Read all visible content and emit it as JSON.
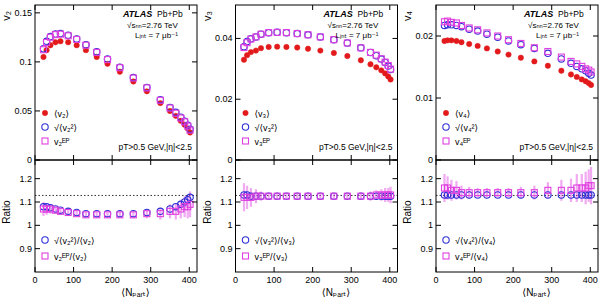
{
  "chart_data": [
    {
      "type": "scatter",
      "y_label": "v₂",
      "tick_labels": "y",
      "x": [
        22,
        30,
        40,
        53,
        66,
        86,
        108,
        132,
        160,
        188,
        220,
        255,
        290,
        325,
        350,
        365,
        378,
        388,
        396,
        402
      ],
      "xlim": [
        0,
        420
      ],
      "xticks": [
        0,
        100,
        200,
        300,
        400
      ],
      "ylim": [
        0,
        0.158
      ],
      "yticks": [
        0,
        0.05,
        0.1,
        0.15
      ],
      "legend": "lower left",
      "annotations": [
        "ATLAS",
        "Pb+Pb",
        "√sₙₙ=2.76 TeV",
        "Lᵢₙₜ = 7 μb⁻¹",
        "pT>0.5 GeV,|η|<2.5"
      ],
      "series": [
        {
          "name": "⟨v₂⟩",
          "color": "#e31a1c",
          "marker": "filled-circle",
          "values": [
            0.105,
            0.112,
            0.117,
            0.12,
            0.121,
            0.12,
            0.117,
            0.112,
            0.105,
            0.098,
            0.09,
            0.08,
            0.07,
            0.058,
            0.05,
            0.045,
            0.04,
            0.036,
            0.032,
            0.028
          ]
        },
        {
          "name": "√⟨v₂²⟩",
          "color": "#2f2fd6",
          "marker": "open-circle",
          "values": [
            0.1134,
            0.121,
            0.1258,
            0.1284,
            0.1289,
            0.1272,
            0.1234,
            0.1176,
            0.1103,
            0.1029,
            0.0945,
            0.084,
            0.0739,
            0.0615,
            0.0535,
            0.0486,
            0.0436,
            0.0396,
            0.0355,
            0.0314
          ]
        },
        {
          "name": "v₂ᴱᴾ",
          "color": "#e040e0",
          "marker": "open-square",
          "values": [
            0.1124,
            0.1198,
            0.1252,
            0.1278,
            0.1283,
            0.1266,
            0.1229,
            0.117,
            0.1097,
            0.1024,
            0.0941,
            0.0836,
            0.0735,
            0.0609,
            0.053,
            0.0477,
            0.0428,
            0.0389,
            0.0346,
            0.0305
          ]
        }
      ]
    },
    {
      "type": "scatter",
      "y_label": "v₃",
      "tick_labels": "y",
      "x": [
        22,
        30,
        40,
        53,
        66,
        86,
        108,
        132,
        160,
        188,
        220,
        255,
        290,
        325,
        350,
        365,
        378,
        388,
        396,
        402
      ],
      "xlim": [
        0,
        420
      ],
      "xticks": [
        0,
        100,
        200,
        300,
        400
      ],
      "ylim": [
        0,
        0.051
      ],
      "yticks": [
        0,
        0.02,
        0.04
      ],
      "legend": "lower left",
      "annotations": [
        "ATLAS",
        "Pb+Pb",
        "√sₙₙ=2.76 TeV",
        "Lᵢₙₜ = 7 μb⁻¹",
        "pT>0.5 GeV,|η|<2.5"
      ],
      "series": [
        {
          "name": "⟨v₃⟩",
          "color": "#e31a1c",
          "marker": "filled-circle",
          "values": [
            0.033,
            0.0345,
            0.0355,
            0.036,
            0.0368,
            0.0372,
            0.0373,
            0.0372,
            0.037,
            0.0366,
            0.036,
            0.0352,
            0.0342,
            0.0328,
            0.0315,
            0.0305,
            0.0295,
            0.0285,
            0.0275,
            0.0265
          ]
        },
        {
          "name": "√⟨v₃²⟩",
          "color": "#2f2fd6",
          "marker": "open-circle",
          "values": [
            0.0373,
            0.039,
            0.0399,
            0.0405,
            0.0414,
            0.0419,
            0.042,
            0.0419,
            0.0416,
            0.0412,
            0.0405,
            0.0396,
            0.0385,
            0.0369,
            0.0354,
            0.0343,
            0.0332,
            0.0321,
            0.0309,
            0.0298
          ]
        },
        {
          "name": "v₃ᴱᴾ",
          "color": "#e040e0",
          "marker": "open-square",
          "values": [
            0.037,
            0.0386,
            0.0398,
            0.0405,
            0.0414,
            0.0419,
            0.042,
            0.0419,
            0.0416,
            0.0412,
            0.0405,
            0.0396,
            0.0385,
            0.0369,
            0.0354,
            0.0345,
            0.0333,
            0.0322,
            0.0311,
            0.0299
          ]
        }
      ]
    },
    {
      "type": "scatter",
      "y_label": "v₄",
      "tick_labels": "y",
      "x": [
        22,
        30,
        40,
        53,
        66,
        86,
        108,
        132,
        160,
        188,
        220,
        255,
        290,
        325,
        350,
        365,
        378,
        388,
        396,
        402
      ],
      "xlim": [
        0,
        420
      ],
      "xticks": [
        0,
        100,
        200,
        300,
        400
      ],
      "ylim": [
        0,
        0.025
      ],
      "yticks": [
        0,
        0.01,
        0.02
      ],
      "legend": "lower left",
      "annotations": [
        "ATLAS",
        "Pb+Pb",
        "√sₙₙ=2.76 TeV",
        "Lᵢₙₜ = 7 μb⁻¹",
        "pT>0.5 GeV,|η|<2.5"
      ],
      "series": [
        {
          "name": "⟨v₄⟩",
          "color": "#e31a1c",
          "marker": "filled-circle",
          "values": [
            0.0192,
            0.0193,
            0.0193,
            0.0192,
            0.019,
            0.0187,
            0.0184,
            0.018,
            0.0175,
            0.017,
            0.0165,
            0.0159,
            0.0152,
            0.0144,
            0.0138,
            0.0134,
            0.013,
            0.0127,
            0.0124,
            0.0121
          ]
        },
        {
          "name": "√⟨v₄²⟩",
          "color": "#2f2fd6",
          "marker": "open-circle",
          "values": [
            0.0217,
            0.0218,
            0.0218,
            0.0217,
            0.0215,
            0.0211,
            0.0208,
            0.0203,
            0.0198,
            0.0192,
            0.0186,
            0.018,
            0.0172,
            0.0163,
            0.0156,
            0.0151,
            0.0147,
            0.0144,
            0.014,
            0.0137
          ]
        },
        {
          "name": "v₄ᴱᴾ",
          "color": "#e040e0",
          "marker": "open-square",
          "values": [
            0.0223,
            0.0224,
            0.0222,
            0.0221,
            0.0217,
            0.0213,
            0.021,
            0.0205,
            0.02,
            0.0194,
            0.0188,
            0.0181,
            0.0175,
            0.0166,
            0.0159,
            0.0155,
            0.0151,
            0.0147,
            0.0145,
            0.0142
          ]
        }
      ]
    },
    {
      "type": "scatter",
      "y_label": "Ratio",
      "x_label": "⟨Nₚₐᵣₜ⟩",
      "x": [
        22,
        30,
        40,
        53,
        66,
        86,
        108,
        132,
        160,
        188,
        220,
        255,
        290,
        325,
        350,
        365,
        378,
        388,
        396,
        402
      ],
      "xlim": [
        0,
        420
      ],
      "xticks": [
        0,
        100,
        200,
        300,
        400
      ],
      "ylim": [
        0.8,
        1.28
      ],
      "yticks": [
        0.9,
        1,
        1.1,
        1.2
      ],
      "reference_line": 1.128,
      "legend": "lower left",
      "series": [
        {
          "name": "√⟨v₂²⟩/⟨v₂⟩",
          "color": "#2f2fd6",
          "marker": "open-circle",
          "values": [
            1.08,
            1.08,
            1.075,
            1.07,
            1.065,
            1.06,
            1.055,
            1.05,
            1.05,
            1.05,
            1.05,
            1.05,
            1.055,
            1.06,
            1.07,
            1.08,
            1.09,
            1.1,
            1.11,
            1.12
          ]
        },
        {
          "name": "v₂ᴱᴾ/⟨v₂⟩",
          "color": "#e040e0",
          "marker": "open-square",
          "values": [
            1.07,
            1.07,
            1.07,
            1.065,
            1.06,
            1.055,
            1.05,
            1.045,
            1.045,
            1.045,
            1.045,
            1.045,
            1.05,
            1.05,
            1.06,
            1.06,
            1.07,
            1.08,
            1.08,
            1.09
          ],
          "errors": [
            0.03,
            0.025,
            0.02,
            0.015,
            0.012,
            0.01,
            0.01,
            0.01,
            0.01,
            0.01,
            0.012,
            0.015,
            0.02,
            0.025,
            0.03,
            0.035,
            0.04,
            0.045,
            0.05,
            0.055
          ]
        }
      ]
    },
    {
      "type": "scatter",
      "y_label": "Ratio",
      "x_label": "⟨Nₚₐᵣₜ⟩",
      "x": [
        22,
        30,
        40,
        53,
        66,
        86,
        108,
        132,
        160,
        188,
        220,
        255,
        290,
        325,
        350,
        365,
        378,
        388,
        396,
        402
      ],
      "xlim": [
        0,
        420
      ],
      "xticks": [
        0,
        100,
        200,
        300,
        400
      ],
      "ylim": [
        0.8,
        1.28
      ],
      "yticks": [
        0.9,
        1,
        1.1,
        1.2
      ],
      "reference_line": 1.128,
      "legend": "lower left",
      "series": [
        {
          "name": "√⟨v₃²⟩/⟨v₃⟩",
          "color": "#2f2fd6",
          "marker": "open-circle",
          "values": [
            1.13,
            1.13,
            1.125,
            1.125,
            1.125,
            1.125,
            1.125,
            1.125,
            1.125,
            1.125,
            1.125,
            1.125,
            1.125,
            1.125,
            1.125,
            1.125,
            1.125,
            1.125,
            1.125,
            1.125
          ]
        },
        {
          "name": "v₃ᴱᴾ/⟨v₃⟩",
          "color": "#e040e0",
          "marker": "open-square",
          "values": [
            1.12,
            1.12,
            1.12,
            1.125,
            1.125,
            1.125,
            1.125,
            1.125,
            1.125,
            1.125,
            1.125,
            1.125,
            1.125,
            1.125,
            1.125,
            1.13,
            1.13,
            1.13,
            1.13,
            1.13
          ],
          "errors": [
            0.06,
            0.05,
            0.04,
            0.03,
            0.02,
            0.015,
            0.012,
            0.01,
            0.01,
            0.01,
            0.01,
            0.01,
            0.012,
            0.015,
            0.02,
            0.02,
            0.025,
            0.03,
            0.03,
            0.035
          ]
        }
      ]
    },
    {
      "type": "scatter",
      "y_label": "Ratio",
      "x_label": "⟨Nₚₐᵣₜ⟩",
      "x": [
        22,
        30,
        40,
        53,
        66,
        86,
        108,
        132,
        160,
        188,
        220,
        255,
        290,
        325,
        350,
        365,
        378,
        388,
        396,
        402
      ],
      "xlim": [
        0,
        420
      ],
      "xticks": [
        0,
        100,
        200,
        300,
        400
      ],
      "ylim": [
        0.8,
        1.28
      ],
      "yticks": [
        0.9,
        1,
        1.1,
        1.2
      ],
      "reference_line": 1.128,
      "legend": "lower left",
      "series": [
        {
          "name": "√⟨v₄²⟩/⟨v₄⟩",
          "color": "#2f2fd6",
          "marker": "open-circle",
          "values": [
            1.13,
            1.13,
            1.13,
            1.13,
            1.13,
            1.13,
            1.13,
            1.13,
            1.13,
            1.13,
            1.13,
            1.13,
            1.13,
            1.13,
            1.13,
            1.13,
            1.13,
            1.13,
            1.13,
            1.13
          ]
        },
        {
          "name": "v₄ᴱᴾ/⟨v₄⟩",
          "color": "#e040e0",
          "marker": "open-square",
          "values": [
            1.16,
            1.16,
            1.15,
            1.15,
            1.14,
            1.14,
            1.14,
            1.14,
            1.14,
            1.14,
            1.14,
            1.14,
            1.15,
            1.15,
            1.15,
            1.16,
            1.16,
            1.16,
            1.17,
            1.17
          ],
          "errors": [
            0.06,
            0.05,
            0.045,
            0.04,
            0.03,
            0.025,
            0.02,
            0.02,
            0.02,
            0.02,
            0.025,
            0.03,
            0.035,
            0.045,
            0.05,
            0.06,
            0.06,
            0.07,
            0.07,
            0.08
          ]
        }
      ]
    }
  ]
}
